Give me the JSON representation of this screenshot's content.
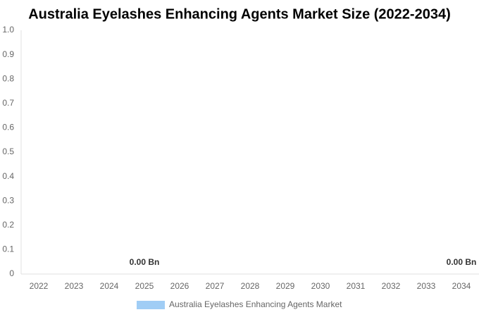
{
  "chart_data": {
    "type": "bar",
    "title": "Australia Eyelashes Enhancing Agents Market Size (2022-2034)",
    "categories": [
      "2022",
      "2023",
      "2024",
      "2025",
      "2026",
      "2027",
      "2028",
      "2029",
      "2030",
      "2031",
      "2032",
      "2033",
      "2034"
    ],
    "series": [
      {
        "name": "Australia Eyelashes Enhancing Agents Market",
        "color": "#a0cdf5",
        "values": [
          null,
          null,
          null,
          0,
          null,
          null,
          null,
          null,
          null,
          null,
          null,
          null,
          0
        ],
        "value_labels": [
          null,
          null,
          null,
          "0.00 Bn",
          null,
          null,
          null,
          null,
          null,
          null,
          null,
          null,
          "0.00 Bn"
        ]
      }
    ],
    "ylim": [
      0,
      1
    ],
    "yticks": [
      0,
      0.1,
      0.2,
      0.3,
      0.4,
      0.5,
      0.6,
      0.7,
      0.8,
      0.9,
      {
        "value": 1,
        "label": "1.0"
      }
    ],
    "grid": false
  }
}
